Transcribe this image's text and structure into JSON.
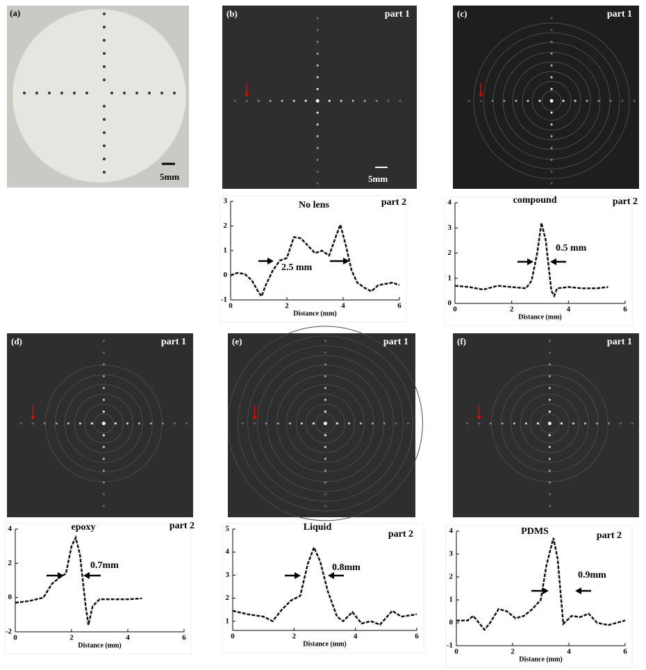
{
  "images": [
    {
      "label": "(a)",
      "scale": "5mm"
    },
    {
      "label": "(b)",
      "part": "part 1",
      "scale": "5mm"
    },
    {
      "label": "(c)",
      "part": "part 1"
    },
    {
      "label": "(d)",
      "part": "part 1"
    },
    {
      "label": "(e)",
      "part": "part 1"
    },
    {
      "label": "(f)",
      "part": "part 1"
    }
  ],
  "chart_data": [
    {
      "type": "line",
      "title": "No lens",
      "part": "part 2",
      "annotation": "2.5 mm",
      "xlabel": "Distance (mm)",
      "x": [
        0,
        0.25,
        0.5,
        0.75,
        1.0,
        1.1,
        1.25,
        1.5,
        1.75,
        2.0,
        2.25,
        2.5,
        2.75,
        3.0,
        3.25,
        3.5,
        3.75,
        3.9,
        4.1,
        4.3,
        4.5,
        4.75,
        5.0,
        5.25,
        5.5,
        5.75,
        6
      ],
      "values": [
        0.0,
        0.1,
        0.05,
        -0.2,
        -0.7,
        -0.85,
        -0.4,
        0.2,
        0.6,
        0.7,
        1.55,
        1.5,
        1.2,
        0.9,
        1.0,
        0.8,
        1.6,
        2.05,
        1.2,
        0.2,
        -0.3,
        -0.5,
        -0.65,
        -0.4,
        -0.35,
        -0.3,
        -0.4
      ],
      "xlim": [
        0,
        6
      ],
      "ylim": [
        -1,
        3
      ],
      "xticks": [
        0,
        2,
        4,
        6
      ],
      "yticks": [
        -1,
        0,
        1,
        2,
        3
      ],
      "color": "#111111"
    },
    {
      "type": "line",
      "title": "compound",
      "part": "part 2",
      "annotation": "0.5 mm",
      "xlabel": "Distance (mm)",
      "x": [
        0,
        0.5,
        1,
        1.5,
        2,
        2.5,
        2.7,
        2.9,
        3.05,
        3.2,
        3.4,
        3.5,
        3.6,
        4,
        4.5,
        5,
        5.4
      ],
      "values": [
        0.7,
        0.65,
        0.55,
        0.7,
        0.65,
        0.6,
        0.9,
        2.0,
        3.2,
        2.5,
        0.5,
        0.3,
        0.6,
        0.65,
        0.6,
        0.6,
        0.65
      ],
      "xlim": [
        0,
        6
      ],
      "ylim": [
        0,
        4
      ],
      "xticks": [
        0,
        2,
        4,
        6
      ],
      "yticks": [
        0,
        1,
        2,
        3,
        4
      ],
      "color": "#111111"
    },
    {
      "type": "line",
      "title": "epoxy",
      "part": "part 2",
      "annotation": "0.7mm",
      "xlabel": "Distance (mm)",
      "x": [
        0,
        0.5,
        1.0,
        1.3,
        1.6,
        1.8,
        2.0,
        2.15,
        2.3,
        2.5,
        2.6,
        2.75,
        3.0,
        3.5,
        4,
        4.5
      ],
      "values": [
        -0.3,
        -0.2,
        0,
        0.8,
        1.2,
        1.4,
        3.0,
        3.5,
        2.5,
        -0.5,
        -1.6,
        -0.5,
        -0.1,
        -0.1,
        -0.1,
        -0.05
      ],
      "xlim": [
        0,
        6
      ],
      "ylim": [
        -2,
        4
      ],
      "xticks": [
        0,
        2,
        4,
        6
      ],
      "yticks": [
        -2,
        0,
        2,
        4
      ],
      "color": "#111111"
    },
    {
      "type": "line",
      "title": "Liquid",
      "part": "part 2",
      "annotation": "0.8mm",
      "xlabel": "Distance (mm)",
      "x": [
        0,
        0.5,
        1,
        1.3,
        1.6,
        1.9,
        2.2,
        2.45,
        2.65,
        2.85,
        3.1,
        3.4,
        3.6,
        3.9,
        4.2,
        4.5,
        4.8,
        5.2,
        5.5,
        6
      ],
      "values": [
        1.45,
        1.3,
        1.2,
        1.0,
        1.5,
        1.9,
        2.1,
        3.5,
        4.2,
        3.6,
        2.3,
        1.2,
        1.0,
        1.4,
        0.9,
        1.0,
        0.85,
        1.45,
        1.2,
        1.3
      ],
      "xlim": [
        0,
        6
      ],
      "ylim": [
        0.6,
        5
      ],
      "xticks": [
        0,
        2,
        4,
        6
      ],
      "yticks": [
        1,
        2,
        3,
        4,
        5
      ],
      "color": "#111111"
    },
    {
      "type": "line",
      "title": "PDMS",
      "part": "part 2",
      "annotation": "0.9mm",
      "xlabel": "Distance (mm)",
      "x": [
        0,
        0.4,
        0.6,
        0.8,
        1.0,
        1.2,
        1.5,
        1.8,
        2.1,
        2.4,
        2.7,
        3.0,
        3.2,
        3.45,
        3.6,
        3.8,
        4.1,
        4.4,
        4.7,
        5,
        5.4,
        6
      ],
      "values": [
        0.1,
        0.1,
        0.3,
        0.0,
        -0.3,
        0.0,
        0.6,
        0.5,
        0.2,
        0.3,
        0.6,
        1.0,
        2.5,
        3.7,
        2.8,
        -0.05,
        0.3,
        0.25,
        0.4,
        0.0,
        -0.1,
        0.1
      ],
      "xlim": [
        0,
        6
      ],
      "ylim": [
        -1,
        4
      ],
      "xticks": [
        0,
        2,
        4,
        6
      ],
      "yticks": [
        -1,
        0,
        1,
        2,
        3,
        4
      ],
      "color": "#111111"
    }
  ]
}
